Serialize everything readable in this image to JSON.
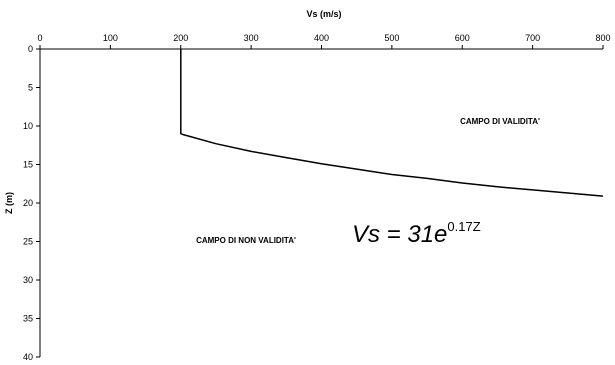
{
  "chart_data": {
    "type": "line",
    "xlabel": "Vs (m/s)",
    "ylabel": "Z (m)",
    "xlim": [
      0,
      800
    ],
    "ylim": [
      0,
      40
    ],
    "y_inverted": true,
    "x_axis_position": "top",
    "xticks": [
      0,
      100,
      200,
      300,
      400,
      500,
      600,
      700,
      800
    ],
    "yticks": [
      0,
      5,
      10,
      15,
      20,
      25,
      30,
      35,
      40
    ],
    "grid": false,
    "legend": "none",
    "series": [
      {
        "color": "#000000",
        "points": [
          {
            "x": 200,
            "y": 0
          },
          {
            "x": 200,
            "y": 11
          },
          {
            "x": 203,
            "y": 11.1
          },
          {
            "x": 250,
            "y": 12.3
          },
          {
            "x": 300,
            "y": 13.3
          },
          {
            "x": 350,
            "y": 14.1
          },
          {
            "x": 400,
            "y": 14.9
          },
          {
            "x": 450,
            "y": 15.6
          },
          {
            "x": 500,
            "y": 16.3
          },
          {
            "x": 550,
            "y": 16.8
          },
          {
            "x": 600,
            "y": 17.4
          },
          {
            "x": 650,
            "y": 17.9
          },
          {
            "x": 700,
            "y": 18.3
          },
          {
            "x": 750,
            "y": 18.7
          },
          {
            "x": 800,
            "y": 19.1
          }
        ]
      }
    ],
    "annotations": {
      "valid_region": "CAMPO DI VALIDITA'",
      "invalid_region": "CAMPO DI NON VALIDITA'",
      "formula_base": "Vs = 31e",
      "formula_exponent": "0.17Z"
    }
  }
}
